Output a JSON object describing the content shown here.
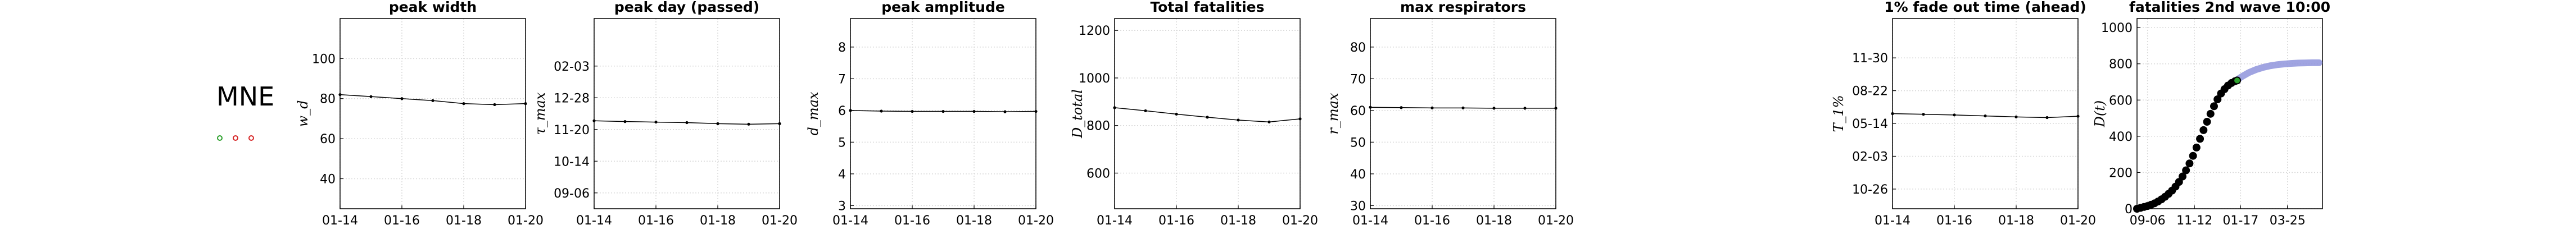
{
  "country": "MNE",
  "legend_markers": [
    {
      "name": "status-green",
      "color": "#2ca02c"
    },
    {
      "name": "status-red-1",
      "color": "#d62728"
    },
    {
      "name": "status-red-2",
      "color": "#d62728"
    }
  ],
  "colors": {
    "line": "#000000",
    "grid": "#d9d9d9",
    "forecast": "#8f94dc"
  },
  "chart_data": [
    {
      "type": "line",
      "title": "peak width",
      "ylabel": "w_d",
      "x_ticks": [
        "01-14",
        "01-16",
        "01-18",
        "01-20"
      ],
      "x": [
        0,
        1,
        2,
        3,
        4,
        5,
        6
      ],
      "y": [
        82,
        81,
        80,
        79,
        77.5,
        77,
        77.5
      ],
      "xlim": [
        0,
        6
      ],
      "ylim": [
        25,
        120
      ],
      "y_ticks": [
        40,
        60,
        80,
        100
      ],
      "grid": true
    },
    {
      "type": "line",
      "title": "peak day (passed)",
      "ylabel": "τ_max",
      "x_ticks": [
        "01-14",
        "01-16",
        "01-18",
        "01-20"
      ],
      "x": [
        0,
        1,
        2,
        3,
        4,
        5,
        6
      ],
      "y": [
        136.5,
        135,
        134,
        133,
        131,
        130,
        131
      ],
      "xlim": [
        0,
        6
      ],
      "ylim": [
        -30,
        330
      ],
      "y_ticks": [
        0,
        60,
        120,
        180,
        240
      ],
      "y_tick_labels": [
        "09-06",
        "10-14",
        "11-20",
        "12-28",
        "02-03"
      ],
      "grid": true
    },
    {
      "type": "line",
      "title": "peak amplitude",
      "ylabel": "d_max",
      "x_ticks": [
        "01-14",
        "01-16",
        "01-18",
        "01-20"
      ],
      "x": [
        0,
        1,
        2,
        3,
        4,
        5,
        6
      ],
      "y": [
        6.0,
        5.98,
        5.97,
        5.97,
        5.97,
        5.96,
        5.97
      ],
      "xlim": [
        0,
        6
      ],
      "ylim": [
        2.9,
        8.9
      ],
      "y_ticks": [
        3,
        4,
        5,
        6,
        7,
        8
      ],
      "grid": true
    },
    {
      "type": "line",
      "title": "Total fatalities",
      "ylabel": "D_total",
      "x_ticks": [
        "01-14",
        "01-16",
        "01-18",
        "01-20"
      ],
      "x": [
        0,
        1,
        2,
        3,
        4,
        5,
        6
      ],
      "y": [
        875,
        862,
        848,
        835,
        823,
        815,
        828
      ],
      "xlim": [
        0,
        6
      ],
      "ylim": [
        450,
        1250
      ],
      "y_ticks": [
        600,
        800,
        1000,
        1200
      ],
      "grid": true
    },
    {
      "type": "line",
      "title": "max respirators",
      "ylabel": "r_max",
      "x_ticks": [
        "01-14",
        "01-16",
        "01-18",
        "01-20"
      ],
      "x": [
        0,
        1,
        2,
        3,
        4,
        5,
        6
      ],
      "y": [
        61,
        60.9,
        60.8,
        60.8,
        60.7,
        60.7,
        60.7
      ],
      "xlim": [
        0,
        6
      ],
      "ylim": [
        29,
        89
      ],
      "y_ticks": [
        30,
        40,
        50,
        60,
        70,
        80
      ],
      "grid": true
    },
    {
      "type": "line",
      "title": "1% fade out time (ahead)",
      "ylabel": "T_1%",
      "x_ticks": [
        "01-14",
        "01-16",
        "01-18",
        "01-20"
      ],
      "x": [
        0,
        1,
        2,
        3,
        4,
        5,
        6
      ],
      "y": [
        230,
        228,
        226,
        223,
        220,
        218,
        222
      ],
      "xlim": [
        0,
        6
      ],
      "ylim": [
        -60,
        520
      ],
      "y_ticks": [
        0,
        100,
        200,
        300,
        400
      ],
      "y_tick_labels": [
        "10-26",
        "02-03",
        "05-14",
        "08-22",
        "11-30"
      ],
      "grid": true
    },
    {
      "type": "scatter",
      "title": "fatalities 2nd wave 10:00",
      "ylabel": "D(t)",
      "x_ticks": [
        "09-06",
        "11-12",
        "01-17",
        "03-25"
      ],
      "x_tick_positions": [
        15,
        82,
        148,
        215
      ],
      "xlim": [
        0,
        265
      ],
      "ylim": [
        0,
        1050
      ],
      "y_ticks": [
        0,
        200,
        400,
        600,
        800,
        1000
      ],
      "observed": {
        "x": [
          0,
          5,
          10,
          15,
          20,
          25,
          30,
          35,
          40,
          45,
          50,
          55,
          60,
          65,
          70,
          75,
          80,
          85,
          90,
          95,
          100,
          105,
          110,
          115,
          120,
          125,
          130,
          135,
          140,
          143
        ],
        "y": [
          0,
          5,
          10,
          15,
          22,
          30,
          40,
          52,
          66,
          82,
          100,
          122,
          148,
          178,
          212,
          250,
          292,
          338,
          386,
          434,
          480,
          524,
          566,
          604,
          636,
          660,
          680,
          694,
          704,
          708
        ]
      },
      "forecast": {
        "x": [
          140,
          150,
          160,
          170,
          180,
          190,
          200,
          210,
          220,
          230,
          240,
          250,
          260
        ],
        "y": [
          704,
          730,
          752,
          768,
          780,
          789,
          795,
          799,
          802,
          804,
          805,
          806,
          806
        ]
      },
      "grid": true
    }
  ]
}
